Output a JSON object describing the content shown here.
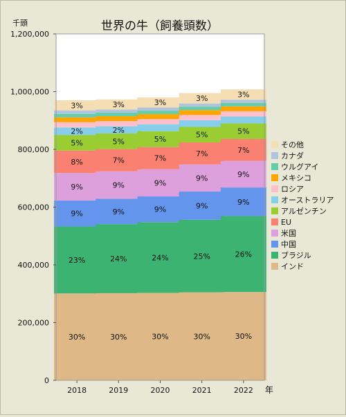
{
  "chart_data": {
    "type": "bar",
    "stacked": true,
    "title": "世界の牛（飼養頭数）",
    "unit_label": "千頭",
    "x_unit_label": "年",
    "categories": [
      "2018",
      "2019",
      "2020",
      "2021",
      "2022"
    ],
    "ylim": [
      0,
      1200000
    ],
    "yticks": [
      "0",
      "200,000",
      "400,000",
      "600,000",
      "800,000",
      "1,000,000",
      "1,200,000"
    ],
    "grid": false,
    "legend_position": "right",
    "series": [
      {
        "name": "インド",
        "color": "#deb887",
        "values": [
          301000,
          302000,
          303000,
          305000,
          306000
        ],
        "labels": [
          "30%",
          "30%",
          "30%",
          "30%",
          "30%"
        ]
      },
      {
        "name": "ブラジル",
        "color": "#3cb371",
        "values": [
          232000,
          239000,
          245000,
          251000,
          263000
        ],
        "labels": [
          "23%",
          "24%",
          "24%",
          "25%",
          "26%"
        ]
      },
      {
        "name": "中国",
        "color": "#6495ed",
        "values": [
          90000,
          88000,
          89000,
          98000,
          99000
        ],
        "labels": [
          "9%",
          "9%",
          "9%",
          "9%",
          "9%"
        ]
      },
      {
        "name": "米国",
        "color": "#dda0dd",
        "values": [
          95000,
          95000,
          94000,
          94000,
          92000
        ],
        "labels": [
          "9%",
          "9%",
          "9%",
          "9%",
          "9%"
        ]
      },
      {
        "name": "EU",
        "color": "#fa8072",
        "values": [
          78000,
          77000,
          77000,
          76000,
          76000
        ],
        "labels": [
          "8%",
          "7%",
          "7%",
          "7%",
          "7%"
        ]
      },
      {
        "name": "アルゼンチン",
        "color": "#9acd32",
        "values": [
          54000,
          54000,
          55000,
          54000,
          54000
        ],
        "labels": [
          "5%",
          "5%",
          "5%",
          "5%",
          "5%"
        ]
      },
      {
        "name": "オーストラリア",
        "color": "#87ceeb",
        "values": [
          26000,
          25000,
          24000,
          23000,
          24000
        ],
        "labels": [
          "2%",
          "2%",
          "",
          "",
          ""
        ]
      },
      {
        "name": "ロシア",
        "color": "#ffc0cb",
        "values": [
          18000,
          18000,
          18000,
          18000,
          18000
        ],
        "labels": [
          "",
          "",
          "",
          "",
          ""
        ]
      },
      {
        "name": "メキシコ",
        "color": "#ffa500",
        "values": [
          17000,
          17000,
          17000,
          17000,
          17000
        ],
        "labels": [
          "",
          "",
          "",
          "",
          ""
        ]
      },
      {
        "name": "ウルグアイ",
        "color": "#66cdaa",
        "values": [
          12000,
          12000,
          12000,
          12000,
          12000
        ],
        "labels": [
          "",
          "",
          "",
          "",
          ""
        ]
      },
      {
        "name": "カナダ",
        "color": "#b0c4de",
        "values": [
          12000,
          11000,
          11000,
          11000,
          11000
        ],
        "labels": [
          "",
          "",
          "",
          "",
          ""
        ]
      },
      {
        "name": "その他",
        "color": "#f5deb3",
        "values": [
          35000,
          35000,
          35000,
          36000,
          36000
        ],
        "labels": [
          "3%",
          "3%",
          "3%",
          "3%",
          "3%"
        ]
      }
    ]
  }
}
